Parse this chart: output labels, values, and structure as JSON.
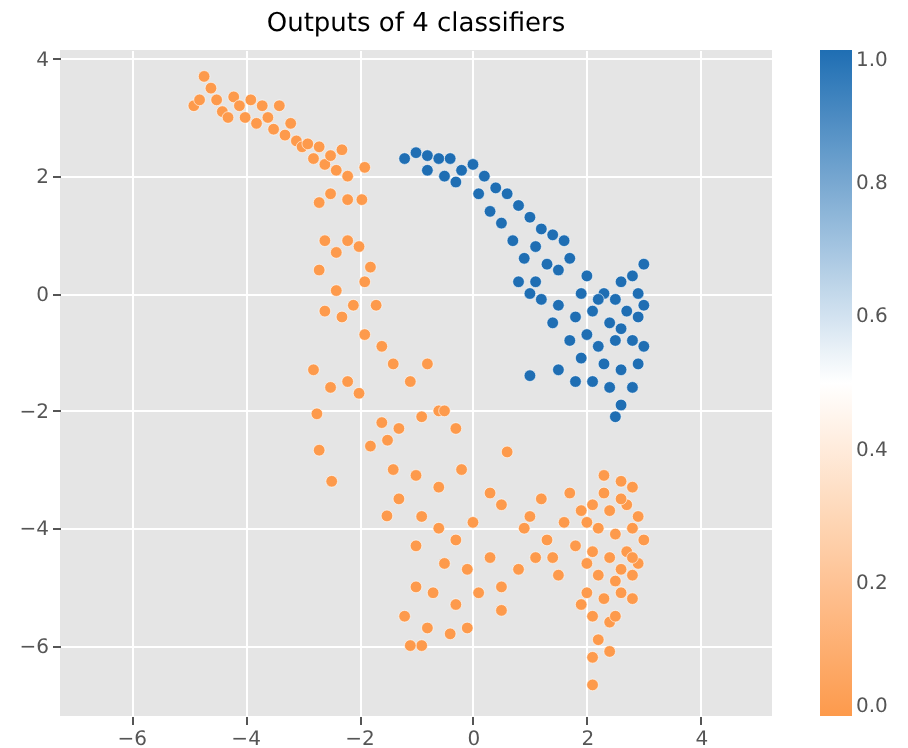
{
  "chart_data": {
    "type": "scatter",
    "title": "Outputs of 4 classifiers",
    "x": [
      -4.9,
      -4.8,
      -4.72,
      -4.6,
      -4.5,
      -4.4,
      -4.3,
      -4.2,
      -4.1,
      -4.0,
      -3.9,
      -3.8,
      -3.7,
      -3.6,
      -3.5,
      -3.4,
      -3.3,
      -3.2,
      -3.1,
      -3.0,
      -2.9,
      -2.8,
      -2.7,
      -2.6,
      -2.5,
      -2.4,
      -2.3,
      -2.2,
      -2.2,
      -2.5,
      -2.7,
      -1.95,
      -1.9,
      -2.6,
      -2.4,
      -2.2,
      -2.0,
      -1.8,
      -1.9,
      -2.7,
      -2.4,
      -2.1,
      -1.7,
      -2.6,
      -2.3,
      -1.9,
      -1.6,
      -2.8,
      -2.5,
      -2.2,
      -2.0,
      -1.4,
      -1.1,
      -0.8,
      -0.6,
      -1.6,
      -2.74,
      -2.7,
      -2.48,
      -1.51,
      -1.5,
      -0.3,
      -1.8,
      -1.3,
      -0.9,
      -0.5,
      -1.4,
      -1.0,
      -0.6,
      -0.2,
      -1.3,
      -0.9,
      -0.6,
      -0.3,
      0.0,
      -1.0,
      -0.5,
      -0.1,
      0.3,
      0.5,
      -1.0,
      -0.7,
      -0.3,
      0.1,
      0.5,
      -1.2,
      -0.8,
      -0.4,
      -0.1,
      -0.9,
      -1.1,
      0.8,
      0.9,
      1.1,
      1.3,
      1.5,
      1.6,
      1.2,
      1.7,
      1.9,
      1.0,
      0.5,
      0.3,
      0.6,
      1.4,
      1.8,
      2.3,
      2.6,
      2.8,
      2.1,
      2.4,
      2.7,
      2.9,
      2.2,
      2.5,
      2.8,
      3.0,
      2.1,
      2.4,
      2.7,
      2.9,
      2.2,
      2.5,
      2.8,
      2.0,
      2.3,
      2.6,
      2.8,
      2.1,
      2.4,
      2.2,
      2.4,
      2.1,
      2.1,
      1.9,
      2.0,
      2.3,
      2.6,
      2.0,
      2.8,
      2.6,
      2.5,
      -1.2,
      -1.0,
      -0.8,
      -0.6,
      -0.4,
      -0.2,
      0.0,
      0.2,
      0.4,
      -0.3,
      0.1,
      -0.5,
      -0.8,
      0.6,
      0.8,
      0.3,
      0.5,
      1.0,
      1.2,
      1.4,
      1.6,
      0.7,
      0.9,
      1.1,
      1.3,
      1.5,
      0.8,
      1.1,
      1.7,
      2.0,
      2.3,
      2.5,
      2.6,
      2.8,
      3.0,
      1.9,
      1.5,
      1.4,
      1.8,
      2.1,
      2.4,
      2.7,
      2.9,
      3.0,
      1.7,
      2.0,
      2.2,
      2.5,
      2.8,
      3.0,
      1.9,
      2.3,
      2.6,
      2.9,
      2.1,
      2.4,
      2.8,
      2.6,
      2.5,
      1.5,
      1.0,
      1.8,
      2.2,
      2.6,
      2.9,
      1.2,
      1.0
    ],
    "values": [
      3.2,
      3.3,
      3.7,
      3.5,
      3.3,
      3.1,
      3.0,
      3.35,
      3.2,
      3.0,
      3.3,
      2.9,
      3.2,
      3.0,
      2.8,
      3.2,
      2.7,
      2.9,
      2.6,
      2.5,
      2.55,
      2.3,
      2.5,
      2.2,
      2.35,
      2.1,
      2.45,
      2.0,
      1.6,
      1.7,
      1.55,
      1.6,
      2.15,
      0.9,
      0.7,
      0.9,
      0.8,
      0.45,
      0.2,
      0.4,
      0.05,
      -0.2,
      -0.2,
      -0.3,
      -0.4,
      -0.7,
      -0.9,
      -1.3,
      -1.6,
      -1.5,
      -1.7,
      -1.2,
      -1.5,
      -1.2,
      -2.0,
      -2.2,
      -2.05,
      -2.67,
      -3.2,
      -3.79,
      -2.5,
      -2.3,
      -2.6,
      -2.3,
      -2.1,
      -2.0,
      -3.0,
      -3.1,
      -3.3,
      -3.0,
      -3.5,
      -3.8,
      -4.0,
      -4.2,
      -3.9,
      -4.3,
      -4.6,
      -4.7,
      -4.5,
      -5.0,
      -5.0,
      -5.1,
      -5.3,
      -5.1,
      -5.4,
      -5.5,
      -5.7,
      -5.8,
      -5.7,
      -6.0,
      -6.0,
      -4.7,
      -4.0,
      -4.5,
      -4.2,
      -4.8,
      -3.9,
      -3.5,
      -3.4,
      -3.7,
      -3.8,
      -3.6,
      -3.4,
      -2.7,
      -4.5,
      -4.3,
      -3.1,
      -3.2,
      -3.3,
      -3.6,
      -3.7,
      -3.6,
      -3.8,
      -4.0,
      -4.1,
      -4.0,
      -4.2,
      -4.4,
      -4.5,
      -4.4,
      -4.6,
      -4.8,
      -4.9,
      -4.8,
      -5.1,
      -5.2,
      -5.1,
      -5.2,
      -5.5,
      -5.6,
      -5.9,
      -6.1,
      -6.2,
      -6.67,
      -5.3,
      -4.6,
      -3.4,
      -3.5,
      -3.9,
      -4.5,
      -4.7,
      -5.5,
      2.3,
      2.4,
      2.35,
      2.3,
      2.3,
      2.1,
      2.2,
      2.0,
      1.8,
      1.9,
      1.7,
      2.0,
      2.1,
      1.7,
      1.5,
      1.4,
      1.2,
      1.3,
      1.1,
      1.0,
      0.9,
      0.9,
      0.6,
      0.8,
      0.5,
      0.4,
      0.2,
      0.2,
      0.6,
      0.3,
      0.0,
      -0.1,
      0.2,
      0.3,
      0.5,
      0.0,
      -0.2,
      -0.5,
      -0.4,
      -0.3,
      -0.5,
      -0.3,
      -0.4,
      -0.2,
      -0.8,
      -0.7,
      -0.9,
      -0.8,
      -0.8,
      -0.9,
      -1.1,
      -1.2,
      -1.3,
      -1.2,
      -1.5,
      -1.6,
      -1.6,
      -1.9,
      -2.1,
      -1.3,
      -1.4,
      -1.5,
      -0.1,
      -0.6,
      0.0,
      -0.1,
      0.0
    ],
    "cvalues": [
      0,
      0,
      0,
      0,
      0,
      0,
      0,
      0,
      0,
      0,
      0,
      0,
      0,
      0,
      0,
      0,
      0,
      0,
      0,
      0,
      0,
      0,
      0,
      0,
      0,
      0,
      0,
      0,
      0,
      0,
      0,
      0,
      0,
      0,
      0,
      0,
      0,
      0,
      0,
      0,
      0,
      0,
      0,
      0,
      0,
      0,
      0,
      0,
      0,
      0,
      0,
      0,
      0,
      0,
      0,
      0,
      0,
      0,
      0,
      0,
      0,
      0,
      0,
      0,
      0,
      0,
      0,
      0,
      0,
      0,
      0,
      0,
      0,
      0,
      0,
      0,
      0,
      0,
      0,
      0,
      0,
      0,
      0,
      0,
      0,
      0,
      0,
      0,
      0,
      0,
      0,
      0,
      0,
      0,
      0,
      0,
      0,
      0,
      0,
      0,
      0,
      0,
      0,
      0,
      0,
      0,
      0,
      0,
      0,
      0,
      0,
      0,
      0,
      0,
      0,
      0,
      0,
      0,
      0,
      0,
      0,
      0,
      0,
      0,
      0,
      0,
      0,
      0,
      0,
      0,
      0,
      0,
      0,
      0,
      0,
      0,
      0,
      0,
      0,
      0,
      0,
      0,
      1,
      1,
      1,
      1,
      1,
      1,
      1,
      1,
      1,
      1,
      1,
      1,
      1,
      1,
      1,
      1,
      1,
      1,
      1,
      1,
      1,
      1,
      1,
      1,
      1,
      1,
      1,
      1,
      1,
      1,
      1,
      1,
      1,
      1,
      1,
      1,
      1,
      1,
      1,
      1,
      1,
      1,
      1,
      1,
      1,
      1,
      1,
      1,
      1,
      1,
      1,
      1,
      1,
      1,
      1,
      1,
      1,
      1,
      1,
      1,
      1,
      1,
      1,
      1,
      1,
      1,
      1
    ],
    "xlim": [
      -7.25,
      5.25
    ],
    "ylim": [
      -7.2,
      4.15
    ],
    "xticks": [
      -6,
      -4,
      -2,
      0,
      2,
      4
    ],
    "yticks": [
      -6,
      -4,
      -2,
      0,
      2,
      4
    ],
    "clim": [
      0,
      1
    ],
    "cticks": [
      {
        "value": 0,
        "label": "0.0"
      },
      0.2,
      0.4,
      0.6,
      0.8,
      {
        "value": 1,
        "label": "1.0"
      }
    ],
    "grid": true,
    "marker": "circle"
  }
}
